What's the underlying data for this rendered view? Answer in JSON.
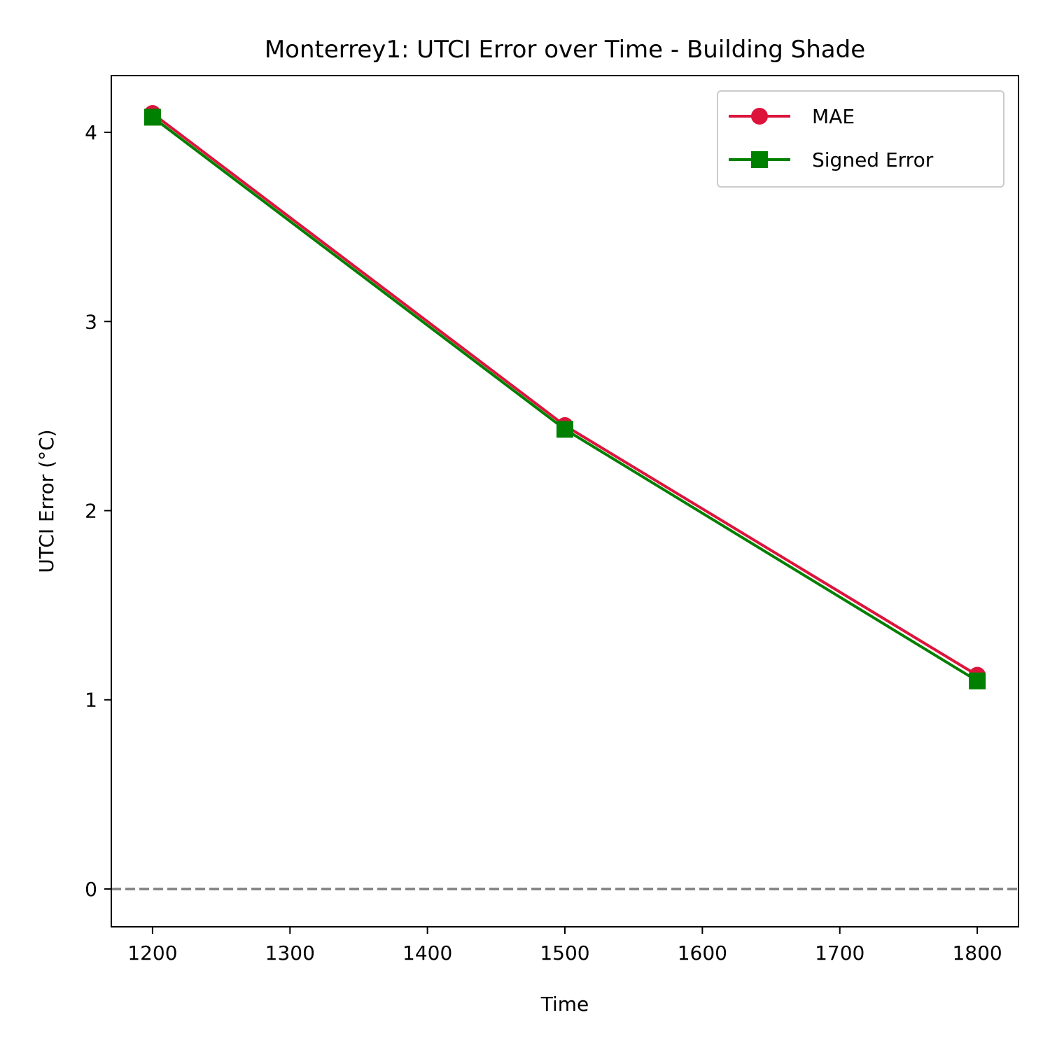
{
  "chart_data": {
    "type": "line",
    "title": "Monterrey1: UTCI Error over Time - Building Shade",
    "xlabel": "Time",
    "ylabel": "UTCI Error (°C)",
    "xlim": [
      1170,
      1830
    ],
    "ylim": [
      -0.2,
      4.3
    ],
    "xticks": [
      1200,
      1300,
      1400,
      1500,
      1600,
      1700,
      1800
    ],
    "yticks": [
      0,
      1,
      2,
      3,
      4
    ],
    "x": [
      1200,
      1500,
      1800
    ],
    "series": [
      {
        "name": "MAE",
        "values": [
          4.1,
          2.45,
          1.13
        ],
        "color": "#dc143c",
        "marker": "circle"
      },
      {
        "name": "Signed Error",
        "values": [
          4.08,
          2.43,
          1.1
        ],
        "color": "#008000",
        "marker": "square"
      }
    ],
    "reference_line": {
      "y": 0,
      "style": "dashed",
      "color": "#808080"
    },
    "legend": {
      "position": "top-right"
    },
    "grid": false
  }
}
